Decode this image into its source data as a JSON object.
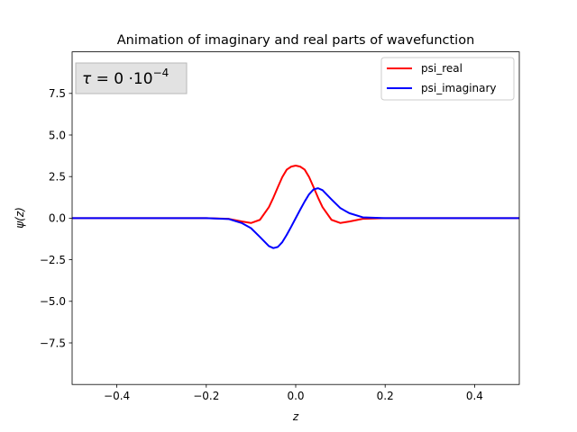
{
  "chart_data": {
    "type": "line",
    "title": "Animation of imaginary and real parts of wavefunction",
    "xlabel": "z",
    "ylabel": "ψ(z)",
    "xlim": [
      -0.5,
      0.5
    ],
    "ylim": [
      -10,
      10
    ],
    "xticks": [
      -0.4,
      -0.2,
      0.0,
      0.2,
      0.4
    ],
    "xtick_labels": [
      "−0.4",
      "−0.2",
      "0.0",
      "0.2",
      "0.4"
    ],
    "yticks": [
      -7.5,
      -5.0,
      -2.5,
      0.0,
      2.5,
      5.0,
      7.5
    ],
    "ytick_labels": [
      "−7.5",
      "−5.0",
      "−2.5",
      "0.0",
      "2.5",
      "5.0",
      "7.5"
    ],
    "annotation": {
      "tau_symbol": "τ",
      "tau_text": " = 0 ·10",
      "tau_exponent": "−4"
    },
    "legend_position": "top-right",
    "series": [
      {
        "name": "psi_real",
        "color": "#ff0000",
        "x": [
          -0.5,
          -0.2,
          -0.15,
          -0.12,
          -0.1,
          -0.08,
          -0.06,
          -0.05,
          -0.04,
          -0.03,
          -0.02,
          -0.01,
          0.0,
          0.01,
          0.02,
          0.03,
          0.04,
          0.05,
          0.06,
          0.08,
          0.1,
          0.12,
          0.15,
          0.2,
          0.5
        ],
        "y": [
          0.0,
          0.0,
          -0.04,
          -0.2,
          -0.29,
          -0.1,
          0.66,
          1.23,
          1.86,
          2.47,
          2.92,
          3.1,
          3.16,
          3.1,
          2.92,
          2.47,
          1.86,
          1.23,
          0.66,
          -0.1,
          -0.29,
          -0.2,
          -0.04,
          0.0,
          0.0
        ]
      },
      {
        "name": "psi_imaginary",
        "color": "#0000ff",
        "x": [
          -0.5,
          -0.2,
          -0.15,
          -0.12,
          -0.1,
          -0.08,
          -0.06,
          -0.05,
          -0.04,
          -0.03,
          -0.02,
          -0.01,
          0.0,
          0.01,
          0.02,
          0.03,
          0.04,
          0.05,
          0.06,
          0.08,
          0.1,
          0.12,
          0.15,
          0.2,
          0.5
        ],
        "y": [
          0.0,
          0.0,
          -0.05,
          -0.3,
          -0.6,
          -1.13,
          -1.68,
          -1.8,
          -1.73,
          -1.44,
          -1.0,
          -0.51,
          0.0,
          0.51,
          1.0,
          1.44,
          1.73,
          1.8,
          1.68,
          1.13,
          0.6,
          0.3,
          0.05,
          0.0,
          0.0
        ]
      }
    ]
  }
}
